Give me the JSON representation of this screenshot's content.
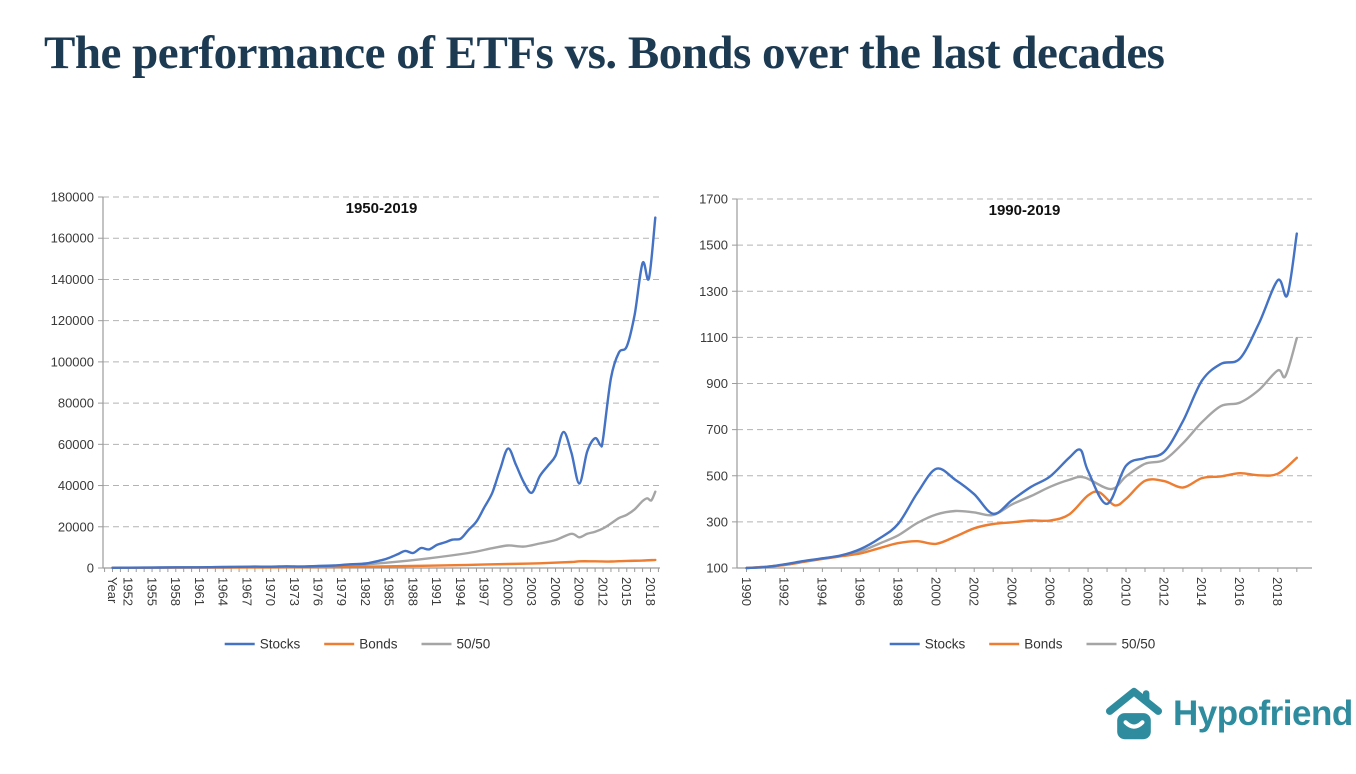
{
  "slide": {
    "title": "The performance of ETFs vs. Bonds over the last decades",
    "title_color": "#1C3A52",
    "background": "#FFFFFF"
  },
  "logo": {
    "text": "Hypofriend",
    "color": "#2E8C9E",
    "icon": "house-smile-icon"
  },
  "chart_data": [
    {
      "type": "line",
      "name": "chart-1950-2019",
      "title": "1950-2019",
      "xlabel": "",
      "ylabel": "",
      "x_range": [
        1948.8,
        2019.2
      ],
      "y_range": [
        0,
        180000
      ],
      "ylim": [
        0,
        180000
      ],
      "y_ticks": [
        0,
        20000,
        40000,
        60000,
        80000,
        100000,
        120000,
        140000,
        160000,
        180000
      ],
      "x_tick_labels": [
        {
          "year": 1950,
          "label": "Year"
        },
        {
          "year": 1952,
          "label": "1952"
        },
        {
          "year": 1955,
          "label": "1955"
        },
        {
          "year": 1958,
          "label": "1958"
        },
        {
          "year": 1961,
          "label": "1961"
        },
        {
          "year": 1964,
          "label": "1964"
        },
        {
          "year": 1967,
          "label": "1967"
        },
        {
          "year": 1970,
          "label": "1970"
        },
        {
          "year": 1973,
          "label": "1973"
        },
        {
          "year": 1976,
          "label": "1976"
        },
        {
          "year": 1979,
          "label": "1979"
        },
        {
          "year": 1982,
          "label": "1982"
        },
        {
          "year": 1985,
          "label": "1985"
        },
        {
          "year": 1988,
          "label": "1988"
        },
        {
          "year": 1991,
          "label": "1991"
        },
        {
          "year": 1994,
          "label": "1994"
        },
        {
          "year": 1997,
          "label": "1997"
        },
        {
          "year": 2000,
          "label": "2000"
        },
        {
          "year": 2003,
          "label": "2003"
        },
        {
          "year": 2006,
          "label": "2006"
        },
        {
          "year": 2009,
          "label": "2009"
        },
        {
          "year": 2012,
          "label": "2012"
        },
        {
          "year": 2015,
          "label": "2015"
        },
        {
          "year": 2018,
          "label": "2018"
        }
      ],
      "grid": "dashed-horizontal",
      "grid_color": "#B3B3B3",
      "axis_color": "#9B9B9B",
      "tick_label_color": "#3A3A3A",
      "legend_position": "bottom-center",
      "series": [
        {
          "name": "Stocks",
          "color": "#4472C4",
          "points": [
            [
              1950,
              100
            ],
            [
              1952,
              140
            ],
            [
              1954,
              190
            ],
            [
              1956,
              260
            ],
            [
              1958,
              320
            ],
            [
              1960,
              340
            ],
            [
              1962,
              380
            ],
            [
              1964,
              500
            ],
            [
              1966,
              560
            ],
            [
              1968,
              660
            ],
            [
              1970,
              620
            ],
            [
              1972,
              820
            ],
            [
              1974,
              680
            ],
            [
              1976,
              950
            ],
            [
              1978,
              1200
            ],
            [
              1980,
              1800
            ],
            [
              1982,
              2200
            ],
            [
              1984,
              3800
            ],
            [
              1985,
              5000
            ],
            [
              1986,
              6600
            ],
            [
              1987,
              8300
            ],
            [
              1988,
              7300
            ],
            [
              1989,
              9700
            ],
            [
              1990,
              9000
            ],
            [
              1991,
              11200
            ],
            [
              1992,
              12400
            ],
            [
              1993,
              13800
            ],
            [
              1994,
              14200
            ],
            [
              1995,
              18500
            ],
            [
              1996,
              22500
            ],
            [
              1997,
              29500
            ],
            [
              1998,
              36500
            ],
            [
              1999,
              48000
            ],
            [
              2000,
              58000
            ],
            [
              2001,
              50000
            ],
            [
              2002,
              41500
            ],
            [
              2003,
              36500
            ],
            [
              2004,
              44500
            ],
            [
              2005,
              49500
            ],
            [
              2006,
              54500
            ],
            [
              2007,
              66000
            ],
            [
              2008,
              56000
            ],
            [
              2009,
              41000
            ],
            [
              2010,
              56500
            ],
            [
              2011,
              63000
            ],
            [
              2011.7,
              59500
            ],
            [
              2012,
              62500
            ],
            [
              2013,
              92000
            ],
            [
              2014,
              104500
            ],
            [
              2015,
              107500
            ],
            [
              2016,
              123000
            ],
            [
              2017,
              148000
            ],
            [
              2017.8,
              140500
            ],
            [
              2018.6,
              170000
            ]
          ]
        },
        {
          "name": "Bonds",
          "color": "#ED7D31",
          "points": [
            [
              1950,
              100
            ],
            [
              1955,
              130
            ],
            [
              1960,
              180
            ],
            [
              1965,
              230
            ],
            [
              1970,
              300
            ],
            [
              1975,
              380
            ],
            [
              1980,
              520
            ],
            [
              1985,
              820
            ],
            [
              1990,
              1100
            ],
            [
              1995,
              1500
            ],
            [
              2000,
              1950
            ],
            [
              2004,
              2300
            ],
            [
              2008,
              2900
            ],
            [
              2009,
              3250
            ],
            [
              2011,
              3250
            ],
            [
              2013,
              3150
            ],
            [
              2015,
              3450
            ],
            [
              2017,
              3600
            ],
            [
              2018.6,
              3950
            ]
          ]
        },
        {
          "name": "50/50",
          "color": "#A5A5A5",
          "points": [
            [
              1950,
              100
            ],
            [
              1955,
              210
            ],
            [
              1960,
              310
            ],
            [
              1965,
              460
            ],
            [
              1970,
              610
            ],
            [
              1975,
              820
            ],
            [
              1980,
              1350
            ],
            [
              1985,
              2700
            ],
            [
              1990,
              4700
            ],
            [
              1995,
              7300
            ],
            [
              1998,
              9600
            ],
            [
              2000,
              10900
            ],
            [
              2002,
              10400
            ],
            [
              2004,
              11900
            ],
            [
              2006,
              13600
            ],
            [
              2008,
              16600
            ],
            [
              2009,
              14900
            ],
            [
              2010,
              16600
            ],
            [
              2011,
              17600
            ],
            [
              2012,
              19200
            ],
            [
              2013,
              21600
            ],
            [
              2014,
              24200
            ],
            [
              2015,
              25800
            ],
            [
              2016,
              28500
            ],
            [
              2017,
              32500
            ],
            [
              2017.6,
              33800
            ],
            [
              2018.1,
              32800
            ],
            [
              2018.6,
              37000
            ]
          ]
        }
      ]
    },
    {
      "type": "line",
      "name": "chart-1990-2019",
      "title": "1990-2019",
      "xlabel": "",
      "ylabel": "",
      "x_range": [
        1989.5,
        2019.8
      ],
      "y_range": [
        100,
        1700
      ],
      "ylim": [
        100,
        1700
      ],
      "y_ticks": [
        100,
        300,
        500,
        700,
        900,
        1100,
        1300,
        1500,
        1700
      ],
      "x_tick_labels": [
        {
          "year": 1990,
          "label": "1990"
        },
        {
          "year": 1992,
          "label": "1992"
        },
        {
          "year": 1994,
          "label": "1994"
        },
        {
          "year": 1996,
          "label": "1996"
        },
        {
          "year": 1998,
          "label": "1998"
        },
        {
          "year": 2000,
          "label": "2000"
        },
        {
          "year": 2002,
          "label": "2002"
        },
        {
          "year": 2004,
          "label": "2004"
        },
        {
          "year": 2006,
          "label": "2006"
        },
        {
          "year": 2008,
          "label": "2008"
        },
        {
          "year": 2010,
          "label": "2010"
        },
        {
          "year": 2012,
          "label": "2012"
        },
        {
          "year": 2014,
          "label": "2014"
        },
        {
          "year": 2016,
          "label": "2016"
        },
        {
          "year": 2018,
          "label": "2018"
        }
      ],
      "grid": "dashed-horizontal",
      "grid_color": "#B3B3B3",
      "axis_color": "#9B9B9B",
      "tick_label_color": "#3A3A3A",
      "legend_position": "bottom-center",
      "series": [
        {
          "name": "Stocks",
          "color": "#4472C4",
          "points": [
            [
              1990,
              100
            ],
            [
              1991,
              104
            ],
            [
              1992,
              116
            ],
            [
              1993,
              130
            ],
            [
              1994,
              142
            ],
            [
              1995,
              155
            ],
            [
              1996,
              182
            ],
            [
              1997,
              228
            ],
            [
              1998,
              292
            ],
            [
              1999,
              425
            ],
            [
              2000,
              530
            ],
            [
              2001,
              483
            ],
            [
              2002,
              420
            ],
            [
              2003,
              335
            ],
            [
              2004,
              395
            ],
            [
              2005,
              452
            ],
            [
              2006,
              497
            ],
            [
              2007,
              578
            ],
            [
              2007.6,
              612
            ],
            [
              2008,
              520
            ],
            [
              2009,
              378
            ],
            [
              2010,
              543
            ],
            [
              2011,
              577
            ],
            [
              2012,
              603
            ],
            [
              2013,
              737
            ],
            [
              2014,
              912
            ],
            [
              2015,
              985
            ],
            [
              2016,
              1008
            ],
            [
              2017,
              1160
            ],
            [
              2018,
              1348
            ],
            [
              2018.5,
              1283
            ],
            [
              2019,
              1550
            ]
          ]
        },
        {
          "name": "Bonds",
          "color": "#ED7D31",
          "points": [
            [
              1990,
              100
            ],
            [
              1991,
              105
            ],
            [
              1992,
              113
            ],
            [
              1993,
              126
            ],
            [
              1994,
              139
            ],
            [
              1995,
              151
            ],
            [
              1996,
              163
            ],
            [
              1997,
              186
            ],
            [
              1998,
              208
            ],
            [
              1999,
              216
            ],
            [
              2000,
              205
            ],
            [
              2001,
              236
            ],
            [
              2002,
              272
            ],
            [
              2003,
              291
            ],
            [
              2004,
              298
            ],
            [
              2005,
              306
            ],
            [
              2006,
              306
            ],
            [
              2007,
              332
            ],
            [
              2008,
              415
            ],
            [
              2008.6,
              428
            ],
            [
              2009.4,
              372
            ],
            [
              2010,
              400
            ],
            [
              2011,
              478
            ],
            [
              2012,
              477
            ],
            [
              2013,
              449
            ],
            [
              2014,
              490
            ],
            [
              2015,
              497
            ],
            [
              2016,
              511
            ],
            [
              2017,
              502
            ],
            [
              2018,
              509
            ],
            [
              2019,
              578
            ]
          ]
        },
        {
          "name": "50/50",
          "color": "#A5A5A5",
          "points": [
            [
              1990,
              100
            ],
            [
              1991,
              105
            ],
            [
              1992,
              114
            ],
            [
              1993,
              128
            ],
            [
              1994,
              141
            ],
            [
              1995,
              153
            ],
            [
              1996,
              172
            ],
            [
              1997,
              206
            ],
            [
              1998,
              242
            ],
            [
              1999,
              295
            ],
            [
              2000,
              332
            ],
            [
              2001,
              347
            ],
            [
              2002,
              341
            ],
            [
              2003,
              330
            ],
            [
              2004,
              376
            ],
            [
              2005,
              412
            ],
            [
              2006,
              452
            ],
            [
              2007,
              482
            ],
            [
              2007.8,
              493
            ],
            [
              2009.2,
              442
            ],
            [
              2010,
              497
            ],
            [
              2011,
              552
            ],
            [
              2012,
              568
            ],
            [
              2013,
              641
            ],
            [
              2014,
              732
            ],
            [
              2015,
              802
            ],
            [
              2016,
              817
            ],
            [
              2017,
              872
            ],
            [
              2018,
              957
            ],
            [
              2018.4,
              932
            ],
            [
              2019,
              1097
            ]
          ]
        }
      ]
    }
  ]
}
